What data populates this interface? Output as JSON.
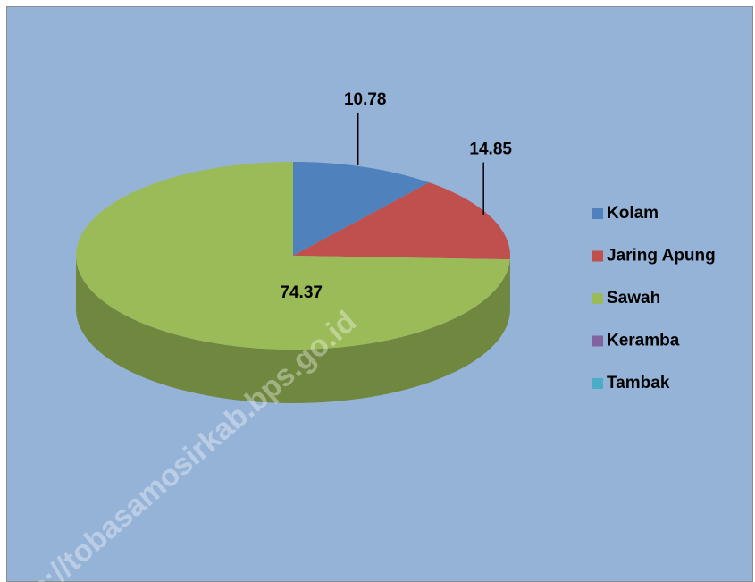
{
  "chart_data": {
    "type": "pie",
    "categories": [
      "Kolam",
      "Jaring Apung",
      "Sawah",
      "Keramba",
      "Tambak"
    ],
    "values": [
      10.78,
      14.85,
      74.37,
      0,
      0
    ],
    "colors": [
      "#4f81bd",
      "#c0504d",
      "#9bbb59",
      "#8064a2",
      "#4bacc6"
    ],
    "legend": "right",
    "watermark": "s://tobasamosirkab.bps.go.id"
  }
}
